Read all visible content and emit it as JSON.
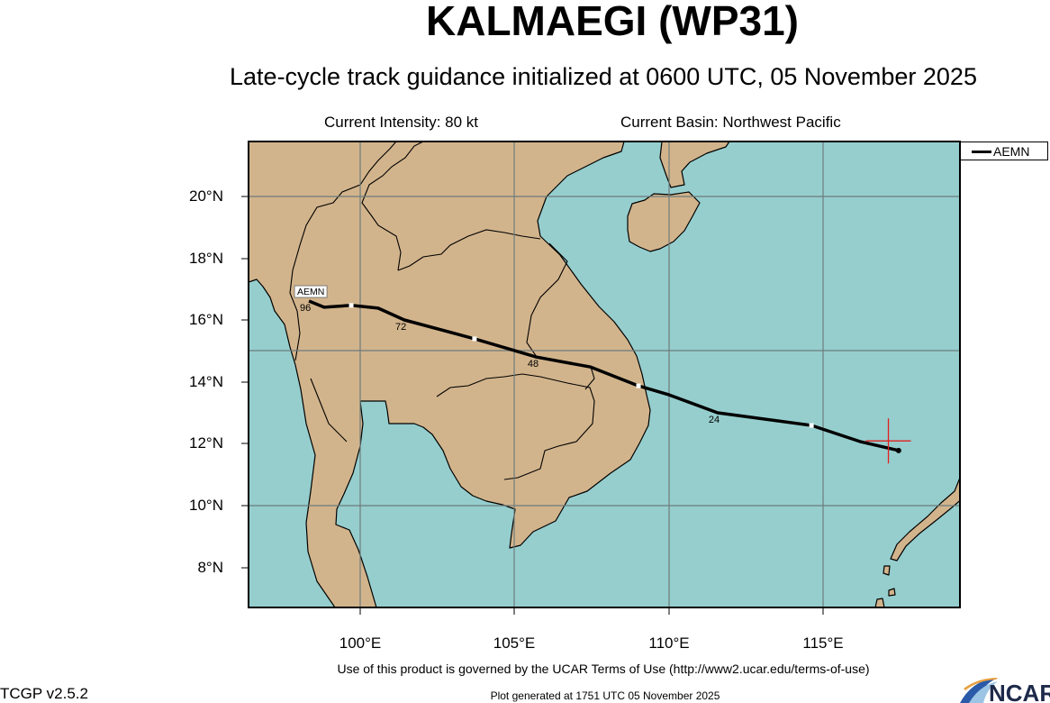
{
  "title": "KALMAEGI (WP31)",
  "subtitle": "Late-cycle track guidance initialized at 0600 UTC, 05 November 2025",
  "current_intensity": "Current Intensity: 80 kt",
  "current_basin": "Current Basin: Northwest Pacific",
  "legend": {
    "items": [
      {
        "label": "AEMN",
        "color": "#000000"
      }
    ]
  },
  "map": {
    "lon_range": [
      96.4,
      119.4
    ],
    "lat_range": [
      6.7,
      21.8
    ],
    "ocean_color": "#96cece",
    "land_color": "#d2b48c",
    "grid_color": "#6e7b7b",
    "lat_labels": [
      "20°N",
      "18°N",
      "16°N",
      "14°N",
      "12°N",
      "10°N",
      "8°N"
    ],
    "lon_labels": [
      "100°E",
      "105°E",
      "110°E",
      "115°E"
    ],
    "current_position": {
      "lon": 117.1,
      "lat": 12.1,
      "marker": "red-cross",
      "color": "#e0201e"
    }
  },
  "track": {
    "model": "AEMN",
    "end_label": "AEMN",
    "points": [
      {
        "lon": 117.43,
        "lat": 11.79
      },
      {
        "lon": 116.18,
        "lat": 12.08
      },
      {
        "lon": 114.61,
        "lat": 12.6,
        "dot": true
      },
      {
        "lon": 111.57,
        "lat": 13.01,
        "hour": "24"
      },
      {
        "lon": 110.0,
        "lat": 13.59
      },
      {
        "lon": 109.01,
        "lat": 13.88,
        "dot": true
      },
      {
        "lon": 107.46,
        "lat": 14.49
      },
      {
        "lon": 105.71,
        "lat": 14.81,
        "hour": "48"
      },
      {
        "lon": 103.7,
        "lat": 15.4,
        "dot": true
      },
      {
        "lon": 101.43,
        "lat": 16.01,
        "hour": "72"
      },
      {
        "lon": 100.58,
        "lat": 16.39
      },
      {
        "lon": 99.71,
        "lat": 16.48,
        "dot": true
      },
      {
        "lon": 98.83,
        "lat": 16.42
      },
      {
        "lon": 98.34,
        "lat": 16.62,
        "hour": "96"
      }
    ]
  },
  "footer": {
    "terms": "Use of this product is governed by the UCAR Terms of Use (http://www2.ucar.edu/terms-of-use)",
    "version": "TCGP v2.5.2",
    "generated": "Plot generated at 1751 UTC   05 November 2025",
    "logo": "NCAR"
  }
}
